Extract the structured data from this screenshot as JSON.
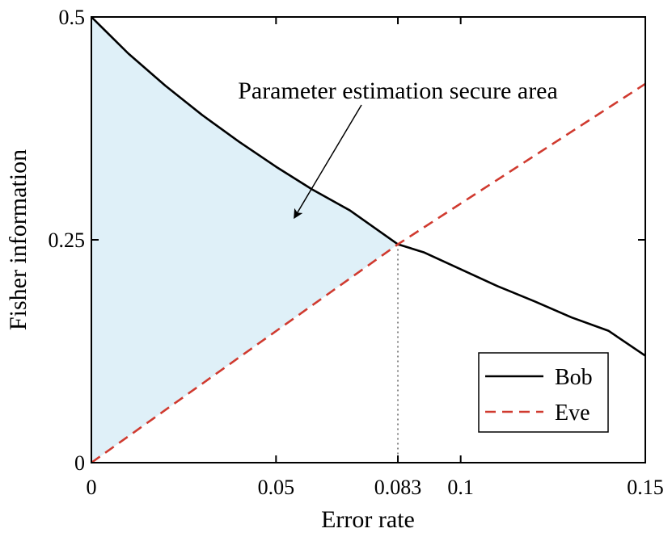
{
  "chart_data": {
    "type": "line",
    "title": "",
    "xlabel": "Error rate",
    "ylabel": "Fisher information",
    "xlim": [
      0,
      0.15
    ],
    "ylim": [
      0,
      0.5
    ],
    "x_ticks": [
      {
        "value": 0,
        "label": "0"
      },
      {
        "value": 0.05,
        "label": "0.05"
      },
      {
        "value": 0.083,
        "label": "0.083"
      },
      {
        "value": 0.1,
        "label": "0.1"
      },
      {
        "value": 0.15,
        "label": "0.15"
      }
    ],
    "y_ticks": [
      {
        "value": 0,
        "label": "0"
      },
      {
        "value": 0.25,
        "label": "0.25"
      },
      {
        "value": 0.5,
        "label": "0.5"
      }
    ],
    "grid": false,
    "legend_position": "bottom-right",
    "series": [
      {
        "name": "Bob",
        "color": "#000000",
        "style": "solid",
        "x": [
          0,
          0.01,
          0.02,
          0.03,
          0.04,
          0.05,
          0.06,
          0.07,
          0.083,
          0.09,
          0.1,
          0.11,
          0.12,
          0.13,
          0.14,
          0.15
        ],
        "y": [
          0.5,
          0.459,
          0.423,
          0.39,
          0.36,
          0.332,
          0.306,
          0.283,
          0.245,
          0.236,
          0.217,
          0.198,
          0.181,
          0.163,
          0.148,
          0.12
        ]
      },
      {
        "name": "Eve",
        "color": "#d03a2f",
        "style": "dashed",
        "x": [
          0,
          0.083,
          0.15
        ],
        "y": [
          0,
          0.245,
          0.425
        ]
      }
    ],
    "intersection": {
      "x": 0.083,
      "y": 0.245
    },
    "shaded_region": {
      "label": "Parameter estimation secure area",
      "color": "#dff0f8"
    },
    "annotations": [
      {
        "text": "Parameter estimation secure area",
        "arrow_target": {
          "x": 0.055,
          "y": 0.275
        }
      }
    ]
  }
}
